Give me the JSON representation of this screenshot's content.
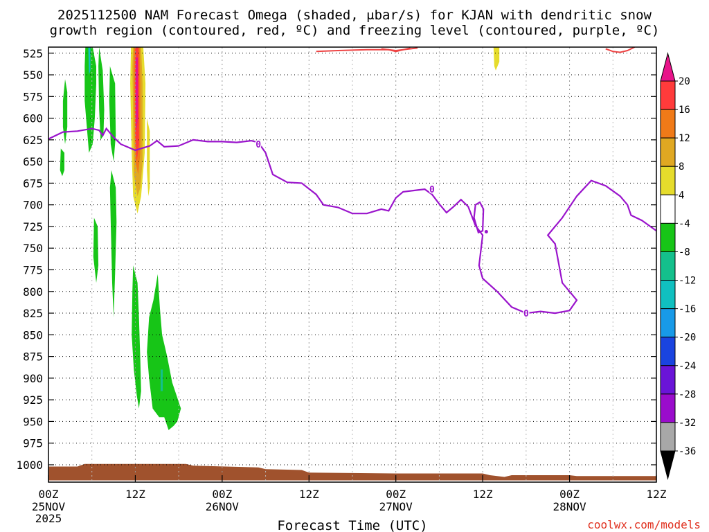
{
  "chart_data": {
    "type": "heatmap",
    "title_lines": [
      "2025112500 NAM Forecast Omega (shaded, μbar/s) for KJAN with dendritic snow",
      "growth region (contoured, red, ºC) and freezing level (contoured, purple, ºC)"
    ],
    "xlabel": "Forecast Time (UTC)",
    "credit": "coolwx.com/models",
    "x_ticks": [
      {
        "h": 0,
        "label": "00Z",
        "date": "25NOV",
        "year": "2025"
      },
      {
        "h": 12,
        "label": "12Z"
      },
      {
        "h": 24,
        "label": "00Z",
        "date": "26NOV"
      },
      {
        "h": 36,
        "label": "12Z"
      },
      {
        "h": 48,
        "label": "00Z",
        "date": "27NOV"
      },
      {
        "h": 60,
        "label": "12Z"
      },
      {
        "h": 72,
        "label": "00Z",
        "date": "28NOV"
      },
      {
        "h": 84,
        "label": "12Z"
      }
    ],
    "xlim": [
      0,
      84
    ],
    "y_ticks": [
      525,
      550,
      575,
      600,
      625,
      650,
      675,
      700,
      725,
      750,
      775,
      800,
      825,
      850,
      875,
      900,
      925,
      950,
      975,
      1000
    ],
    "ylim": [
      518,
      1020
    ],
    "grid": "dotted",
    "colorbar": {
      "labels": [
        "20",
        "16",
        "12",
        "8",
        "4",
        "-4",
        "-8",
        "-12",
        "-16",
        "-20",
        "-24",
        "-28",
        "-32",
        "-36"
      ],
      "colors": [
        "#ff3b3b",
        "#f07a18",
        "#e0a822",
        "#e6dc2c",
        "#ffffff",
        "#17c517",
        "#14c08c",
        "#10c0c0",
        "#189ae8",
        "#1a44e0",
        "#6a14d8",
        "#9a0ccc",
        "#a8a8a8"
      ],
      "top_arrow_color": "#e8148a",
      "bottom_arrow_color": "#000000"
    },
    "freezing_level": {
      "color": "#9a14cc",
      "contour_label": "0",
      "points": [
        [
          0,
          624
        ],
        [
          2,
          616
        ],
        [
          4,
          615
        ],
        [
          6,
          612
        ],
        [
          7,
          614
        ],
        [
          7.5,
          620
        ],
        [
          8,
          612
        ],
        [
          9,
          622
        ],
        [
          10,
          630
        ],
        [
          12,
          637
        ],
        [
          14,
          632
        ],
        [
          15,
          626
        ],
        [
          16,
          633
        ],
        [
          18,
          632
        ],
        [
          20,
          625
        ],
        [
          22,
          627
        ],
        [
          24,
          627
        ],
        [
          26,
          628
        ],
        [
          28,
          626
        ],
        [
          29,
          628
        ],
        [
          30,
          640
        ],
        [
          31,
          665
        ],
        [
          33,
          674
        ],
        [
          35,
          675
        ],
        [
          37,
          688
        ],
        [
          38,
          700
        ],
        [
          40,
          703
        ],
        [
          42,
          710
        ],
        [
          44,
          710
        ],
        [
          46,
          705
        ],
        [
          47,
          707
        ],
        [
          48,
          692
        ],
        [
          49,
          685
        ],
        [
          51,
          683
        ],
        [
          52,
          682
        ],
        [
          53,
          688
        ],
        [
          54,
          699
        ],
        [
          55,
          709
        ],
        [
          56,
          702
        ],
        [
          57,
          694
        ],
        [
          58,
          702
        ],
        [
          59,
          724
        ],
        [
          60,
          735
        ],
        [
          59.5,
          770
        ],
        [
          60,
          785
        ],
        [
          62,
          800
        ],
        [
          64,
          818
        ],
        [
          66,
          825
        ],
        [
          68,
          823
        ],
        [
          70,
          825
        ],
        [
          72,
          822
        ],
        [
          73,
          810
        ],
        [
          71,
          790
        ],
        [
          70,
          745
        ],
        [
          69,
          735
        ],
        [
          71,
          715
        ],
        [
          73,
          690
        ],
        [
          75,
          672
        ],
        [
          77,
          678
        ],
        [
          79,
          690
        ],
        [
          80,
          700
        ],
        [
          80.5,
          712
        ],
        [
          82,
          718
        ],
        [
          84,
          730
        ],
        [
          85,
          730
        ]
      ]
    },
    "closed_loop": {
      "points": [
        [
          59,
          700
        ],
        [
          59.6,
          697
        ],
        [
          60.1,
          705
        ],
        [
          60,
          730
        ],
        [
          59.4,
          732
        ],
        [
          58.8,
          715
        ]
      ]
    },
    "dot": [
      60.5,
      731
    ],
    "dgz_segments": [
      [
        [
          37,
          523
        ],
        [
          40,
          522
        ],
        [
          44,
          521
        ],
        [
          47,
          521
        ],
        [
          48,
          523
        ],
        [
          50,
          519
        ]
      ],
      [
        [
          46,
          520
        ],
        [
          48,
          522
        ],
        [
          51,
          519
        ]
      ],
      [
        [
          77,
          520
        ],
        [
          78,
          523
        ],
        [
          79,
          524
        ],
        [
          80,
          522
        ],
        [
          81,
          518
        ]
      ]
    ],
    "omega_regions": [
      {
        "color": "#17c517",
        "points": [
          [
            2.3,
            555
          ],
          [
            2.6,
            570
          ],
          [
            2.6,
            610
          ],
          [
            2.3,
            630
          ],
          [
            2.0,
            610
          ],
          [
            2.0,
            580
          ]
        ]
      },
      {
        "color": "#17c517",
        "points": [
          [
            1.7,
            635
          ],
          [
            2.2,
            640
          ],
          [
            2.2,
            660
          ],
          [
            1.9,
            667
          ],
          [
            1.6,
            660
          ]
        ]
      },
      {
        "color": "#17c517",
        "points": [
          [
            5.1,
            518
          ],
          [
            6.1,
            518
          ],
          [
            6.6,
            540
          ],
          [
            6.6,
            560
          ],
          [
            6.4,
            600
          ],
          [
            6.1,
            630
          ],
          [
            5.6,
            640
          ],
          [
            5.3,
            610
          ],
          [
            5.0,
            580
          ],
          [
            5.0,
            540
          ]
        ]
      },
      {
        "color": "#17c517",
        "points": [
          [
            7,
            518
          ],
          [
            7.5,
            545
          ],
          [
            7.7,
            590
          ],
          [
            7.6,
            620
          ],
          [
            7.2,
            625
          ],
          [
            7.0,
            590
          ],
          [
            6.9,
            540
          ]
        ]
      },
      {
        "color": "#17c517",
        "points": [
          [
            8.5,
            540
          ],
          [
            9.2,
            560
          ],
          [
            9.3,
            620
          ],
          [
            9.0,
            650
          ],
          [
            8.6,
            630
          ],
          [
            8.4,
            580
          ]
        ]
      },
      {
        "color": "#17c517",
        "points": [
          [
            8.7,
            660
          ],
          [
            9.3,
            680
          ],
          [
            9.4,
            720
          ],
          [
            9.2,
            780
          ],
          [
            9.0,
            830
          ],
          [
            8.8,
            790
          ],
          [
            8.6,
            720
          ],
          [
            8.5,
            680
          ]
        ]
      },
      {
        "color": "#17c517",
        "points": [
          [
            6.3,
            715
          ],
          [
            6.8,
            725
          ],
          [
            6.9,
            770
          ],
          [
            6.6,
            790
          ],
          [
            6.2,
            760
          ]
        ]
      },
      {
        "color": "#17c517",
        "points": [
          [
            11.7,
            770
          ],
          [
            12.3,
            790
          ],
          [
            12.5,
            830
          ],
          [
            12.7,
            880
          ],
          [
            12.8,
            915
          ],
          [
            12.5,
            935
          ],
          [
            12.2,
            920
          ],
          [
            11.8,
            890
          ],
          [
            11.5,
            850
          ],
          [
            11.6,
            800
          ]
        ]
      },
      {
        "color": "#17c517",
        "points": [
          [
            15.1,
            780
          ],
          [
            15.4,
            820
          ],
          [
            15.7,
            850
          ],
          [
            16.4,
            875
          ],
          [
            17.1,
            905
          ],
          [
            18.3,
            935
          ],
          [
            17.8,
            950
          ],
          [
            17.3,
            955
          ],
          [
            16.6,
            960
          ],
          [
            16.0,
            945
          ],
          [
            15.3,
            945
          ],
          [
            14.4,
            935
          ],
          [
            13.9,
            900
          ],
          [
            13.6,
            870
          ],
          [
            13.9,
            830
          ],
          [
            14.5,
            810
          ]
        ]
      },
      {
        "color": "#e6dc2c",
        "points": [
          [
            11.4,
            518
          ],
          [
            13.1,
            518
          ],
          [
            13.4,
            560
          ],
          [
            13.3,
            640
          ],
          [
            12.8,
            690
          ],
          [
            12.3,
            710
          ],
          [
            11.7,
            690
          ],
          [
            11.5,
            640
          ],
          [
            11.3,
            560
          ]
        ]
      },
      {
        "color": "#e6dc2c",
        "points": [
          [
            13.6,
            600
          ],
          [
            14.0,
            615
          ],
          [
            14.0,
            680
          ],
          [
            13.8,
            690
          ],
          [
            13.6,
            660
          ]
        ]
      },
      {
        "color": "#e6dc2c",
        "points": [
          [
            61.5,
            518
          ],
          [
            62.3,
            518
          ],
          [
            62.3,
            535
          ],
          [
            61.8,
            545
          ],
          [
            61.6,
            540
          ]
        ]
      },
      {
        "color": "#e0a822",
        "points": [
          [
            11.7,
            518
          ],
          [
            12.8,
            518
          ],
          [
            13.0,
            560
          ],
          [
            13.0,
            650
          ],
          [
            12.7,
            680
          ],
          [
            12.3,
            690
          ],
          [
            11.8,
            665
          ],
          [
            11.7,
            600
          ],
          [
            11.6,
            540
          ]
        ]
      },
      {
        "color": "#f07a18",
        "points": [
          [
            11.85,
            518
          ],
          [
            12.6,
            518
          ],
          [
            12.7,
            560
          ],
          [
            12.7,
            640
          ],
          [
            12.4,
            665
          ],
          [
            12.0,
            650
          ],
          [
            11.9,
            600
          ],
          [
            11.8,
            540
          ]
        ]
      },
      {
        "color": "#ff3b3b",
        "points": [
          [
            12.0,
            518
          ],
          [
            12.45,
            518
          ],
          [
            12.5,
            560
          ],
          [
            12.5,
            630
          ],
          [
            12.2,
            650
          ],
          [
            12.0,
            620
          ],
          [
            11.95,
            560
          ]
        ]
      },
      {
        "color": "#e8148a",
        "points": [
          [
            12.05,
            530
          ],
          [
            12.35,
            530
          ],
          [
            12.35,
            600
          ],
          [
            12.15,
            615
          ],
          [
            12.05,
            590
          ]
        ]
      },
      {
        "color": "#10c0c0",
        "points": [
          [
            5.5,
            518
          ],
          [
            5.8,
            518
          ],
          [
            5.8,
            545
          ],
          [
            5.6,
            550
          ]
        ]
      },
      {
        "color": "#14c08c",
        "points": [
          [
            15.5,
            890
          ],
          [
            15.8,
            890
          ],
          [
            15.8,
            915
          ],
          [
            15.5,
            915
          ]
        ]
      }
    ],
    "terrain": {
      "color": "#a0522d",
      "top": [
        [
          0,
          1002
        ],
        [
          4,
          1002
        ],
        [
          5,
          999
        ],
        [
          10,
          999
        ],
        [
          15,
          999
        ],
        [
          19,
          999
        ],
        [
          20,
          1001
        ],
        [
          29,
          1003
        ],
        [
          30,
          1005
        ],
        [
          35,
          1006
        ],
        [
          36,
          1009
        ],
        [
          48,
          1010
        ],
        [
          60,
          1010
        ],
        [
          61,
          1012
        ],
        [
          63,
          1014
        ],
        [
          64,
          1012
        ],
        [
          72,
          1012
        ],
        [
          73,
          1013
        ],
        [
          84,
          1013
        ]
      ],
      "bottom_p": 1018
    }
  }
}
